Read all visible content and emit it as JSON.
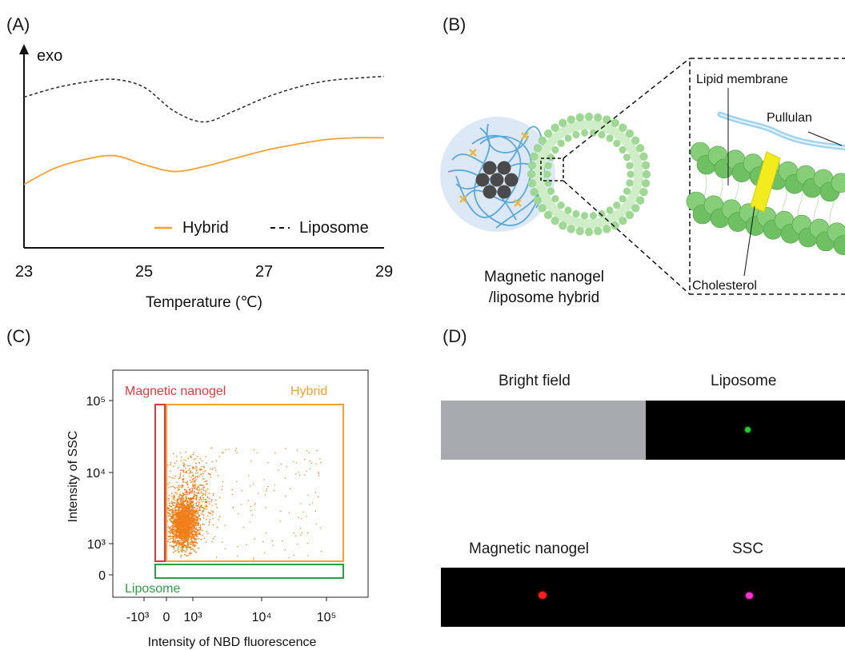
{
  "panels": {
    "a": "(A)",
    "b": "(B)",
    "c": "(C)",
    "d": "(D)"
  },
  "dsc": {
    "y_marker": "exo",
    "x_title": "Temperature (℃)",
    "x_ticks": [
      "23",
      "25",
      "27",
      "29"
    ],
    "legend": {
      "hybrid": "Hybrid",
      "liposome": "Liposome"
    },
    "colors": {
      "hybrid": "#f5a033",
      "liposome": "#333333"
    }
  },
  "chart_data": [
    {
      "type": "line",
      "xlabel": "Temperature (℃)",
      "ylabel": "exo",
      "xlim": [
        23,
        29
      ],
      "ylim": [
        0,
        10
      ],
      "yticks": "none",
      "legend_position": "bottom-right",
      "series": [
        {
          "name": "Liposome",
          "style": "dashed",
          "color": "#333333",
          "x": [
            23,
            23.5,
            24,
            24.5,
            25,
            25.5,
            26,
            26.5,
            27,
            27.5,
            28,
            28.5,
            29
          ],
          "y": [
            7.6,
            8.05,
            8.35,
            8.5,
            8.1,
            6.9,
            6.35,
            6.9,
            7.55,
            8.05,
            8.4,
            8.55,
            8.65
          ]
        },
        {
          "name": "Hybrid",
          "style": "solid",
          "color": "#f5a033",
          "x": [
            23,
            23.5,
            24,
            24.5,
            25,
            25.5,
            26,
            26.5,
            27,
            27.5,
            28,
            28.5,
            29
          ],
          "y": [
            3.2,
            4.0,
            4.45,
            4.65,
            4.2,
            3.85,
            4.1,
            4.5,
            4.9,
            5.2,
            5.45,
            5.55,
            5.55
          ]
        }
      ]
    },
    {
      "type": "scatter",
      "xlabel": "Intensity of NBD fluorescence",
      "ylabel": "Intensity of SSC",
      "x_scale": "biexponential",
      "y_scale": "biexponential",
      "x_ticks": [
        "-10³",
        "0",
        "10³",
        "10⁴",
        "10⁵"
      ],
      "y_ticks": [
        "0",
        "10³",
        "10⁴",
        "10⁵"
      ],
      "gates": [
        {
          "name": "Magnetic nanogel",
          "color": "#e0393e",
          "x_range": [
            "-10³",
            "0"
          ],
          "y_range": [
            "10³",
            "10⁵"
          ]
        },
        {
          "name": "Hybrid",
          "color": "#f5a033",
          "x_range": [
            "0",
            "1.8×10⁵"
          ],
          "y_range": [
            "10³",
            "10⁵"
          ]
        },
        {
          "name": "Liposome",
          "color": "#2e9e46",
          "x_range": [
            "-10³",
            "1.8×10⁵"
          ],
          "y_range": [
            "0",
            "10³"
          ]
        }
      ],
      "point_color": "#f07f1a",
      "point_cloud": "dense cluster centred near NBD ≈ 10³ and SSC ≈ 2×10³, sparse tail to NBD ≈ 10⁵"
    }
  ],
  "schematic": {
    "caption_line1": "Magnetic nanogel",
    "caption_line2": "/liposome hybrid",
    "labels": {
      "lipid_membrane": "Lipid membrane",
      "pullulan": "Pullulan",
      "cholesterol": "Cholesterol"
    }
  },
  "flow": {
    "y_title": "Intensity of SSC",
    "x_title": "Intensity of NBD fluorescence",
    "y_ticks": [
      "10⁵",
      "10⁴",
      "10³",
      "0"
    ],
    "x_ticks": [
      "-10³",
      "0",
      "10³",
      "10⁴",
      "10⁵"
    ],
    "gate_labels": {
      "nanogel": "Magnetic nanogel",
      "hybrid": "Hybrid",
      "liposome": "Liposome"
    }
  },
  "micro": {
    "bright_field": "Bright field",
    "liposome": "Liposome",
    "nanogel": "Magnetic nanogel",
    "ssc": "SSC",
    "colors": {
      "green": "#22cc33",
      "red": "#ff2020",
      "magenta": "#ff33cc"
    }
  }
}
